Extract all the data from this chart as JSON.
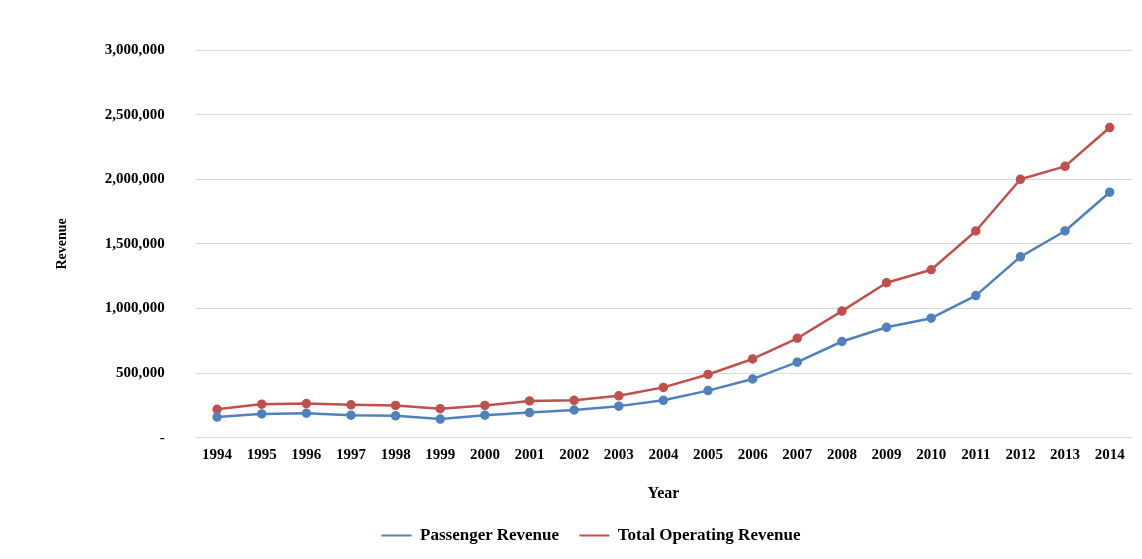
{
  "chart_data": {
    "type": "line",
    "xlabel": "Year",
    "ylabel": "Revenue",
    "categories": [
      "1994",
      "1995",
      "1996",
      "1997",
      "1998",
      "1999",
      "2000",
      "2001",
      "2002",
      "2003",
      "2004",
      "2005",
      "2006",
      "2007",
      "2008",
      "2009",
      "2010",
      "2011",
      "2012",
      "2013",
      "2014"
    ],
    "series": [
      {
        "name": "Passenger Revenue",
        "color": "#4f81bd",
        "values": [
          160000,
          185000,
          190000,
          175000,
          170000,
          145000,
          175000,
          195000,
          215000,
          245000,
          290000,
          365000,
          455000,
          585000,
          745000,
          855000,
          925000,
          1100000,
          1400000,
          1600000,
          1900000
        ]
      },
      {
        "name": "Total Operating Revenue",
        "color": "#c0504d",
        "values": [
          220000,
          260000,
          265000,
          255000,
          250000,
          225000,
          250000,
          285000,
          290000,
          325000,
          390000,
          490000,
          610000,
          770000,
          980000,
          1200000,
          1300000,
          1600000,
          2000000,
          2100000,
          2400000
        ]
      }
    ],
    "ylim": [
      0,
      3000000
    ],
    "yticks": [
      {
        "value": 0,
        "label": "-"
      },
      {
        "value": 500000,
        "label": "500,000"
      },
      {
        "value": 1000000,
        "label": "1,000,000"
      },
      {
        "value": 1500000,
        "label": "1,500,000"
      },
      {
        "value": 2000000,
        "label": "2,000,000"
      },
      {
        "value": 2500000,
        "label": "2,500,000"
      },
      {
        "value": 3000000,
        "label": "3,000,000"
      }
    ],
    "grid": "y",
    "legend": "bottom",
    "marker": "circle",
    "line_style": "solid"
  }
}
